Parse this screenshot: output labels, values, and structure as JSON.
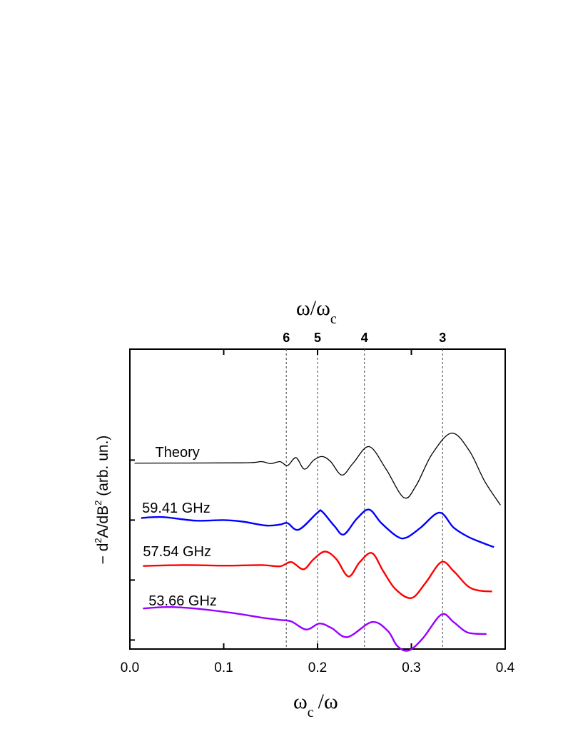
{
  "chart_data": {
    "type": "line",
    "title": "",
    "xlabel": "ωc/ω",
    "xlabel_parts": {
      "main": "ω",
      "sub": "c",
      "rest": "/ω"
    },
    "ylabel": "- d²A/dB² (arb. un.)",
    "ylabel_parts": {
      "pre": "− d",
      "sup1": "2",
      "mid": "A/dB",
      "sup2": "2",
      "post": " (arb. un.)"
    },
    "top_axis_label": "ω/ωc",
    "top_axis_parts": {
      "main": "ω/ω",
      "sub": "c"
    },
    "xlim": [
      0.0,
      0.4
    ],
    "ylim": [
      0,
      10
    ],
    "x_ticks": [
      0.0,
      0.1,
      0.2,
      0.3,
      0.4
    ],
    "x_tick_labels": [
      "0.0",
      "0.1",
      "0.2",
      "0.3",
      "0.4"
    ],
    "y_ticks": [
      0.3,
      2.3,
      4.3,
      6.3
    ],
    "harmonics": [
      {
        "label": "6",
        "x": 0.1667
      },
      {
        "label": "5",
        "x": 0.2
      },
      {
        "label": "4",
        "x": 0.25
      },
      {
        "label": "3",
        "x": 0.3333
      }
    ],
    "series": [
      {
        "name": "Theory",
        "color": "#000000",
        "label_at": [
          0.027,
          6.4
        ],
        "x": [
          0.005,
          0.12,
          0.14,
          0.15,
          0.16,
          0.168,
          0.177,
          0.186,
          0.196,
          0.205,
          0.214,
          0.226,
          0.238,
          0.255,
          0.273,
          0.292,
          0.305,
          0.322,
          0.343,
          0.362,
          0.378,
          0.395
        ],
        "y": [
          6.2,
          6.21,
          6.25,
          6.18,
          6.25,
          6.12,
          6.38,
          6.0,
          6.3,
          6.42,
          6.25,
          5.8,
          6.2,
          6.75,
          6.0,
          5.05,
          5.45,
          6.5,
          7.2,
          6.6,
          5.6,
          4.8
        ]
      },
      {
        "name": "59.41 GHz",
        "color": "#0000ff",
        "label_at": [
          0.013,
          4.55
        ],
        "x": [
          0.012,
          0.035,
          0.07,
          0.1,
          0.12,
          0.145,
          0.16,
          0.168,
          0.18,
          0.2,
          0.205,
          0.218,
          0.228,
          0.242,
          0.255,
          0.268,
          0.285,
          0.295,
          0.31,
          0.33,
          0.345,
          0.36,
          0.375,
          0.388
        ],
        "y": [
          4.37,
          4.4,
          4.28,
          4.3,
          4.25,
          4.12,
          4.15,
          4.2,
          3.98,
          4.55,
          4.58,
          4.1,
          3.82,
          4.35,
          4.65,
          4.2,
          3.75,
          3.72,
          4.05,
          4.55,
          4.05,
          3.75,
          3.55,
          3.4
        ]
      },
      {
        "name": "57.54 GHz",
        "color": "#ff0000",
        "label_at": [
          0.014,
          3.1
        ],
        "x": [
          0.014,
          0.06,
          0.1,
          0.14,
          0.16,
          0.172,
          0.185,
          0.196,
          0.208,
          0.22,
          0.233,
          0.245,
          0.258,
          0.27,
          0.283,
          0.3,
          0.315,
          0.332,
          0.345,
          0.36,
          0.372,
          0.386
        ],
        "y": [
          2.77,
          2.8,
          2.78,
          2.8,
          2.76,
          2.9,
          2.66,
          3.0,
          3.25,
          3.0,
          2.42,
          2.9,
          3.2,
          2.6,
          2.0,
          1.7,
          2.2,
          2.9,
          2.6,
          2.1,
          1.95,
          1.92
        ]
      },
      {
        "name": "53.66 GHz",
        "color": "#9900ff",
        "label_at": [
          0.02,
          1.45
        ],
        "x": [
          0.014,
          0.04,
          0.07,
          0.11,
          0.14,
          0.16,
          0.172,
          0.188,
          0.202,
          0.215,
          0.232,
          0.258,
          0.275,
          0.285,
          0.297,
          0.312,
          0.332,
          0.345,
          0.36,
          0.38
        ],
        "y": [
          1.35,
          1.4,
          1.35,
          1.2,
          1.05,
          0.97,
          0.92,
          0.65,
          0.85,
          0.7,
          0.4,
          0.9,
          0.6,
          0.1,
          -0.05,
          0.35,
          1.15,
          0.9,
          0.55,
          0.5
        ]
      }
    ]
  }
}
